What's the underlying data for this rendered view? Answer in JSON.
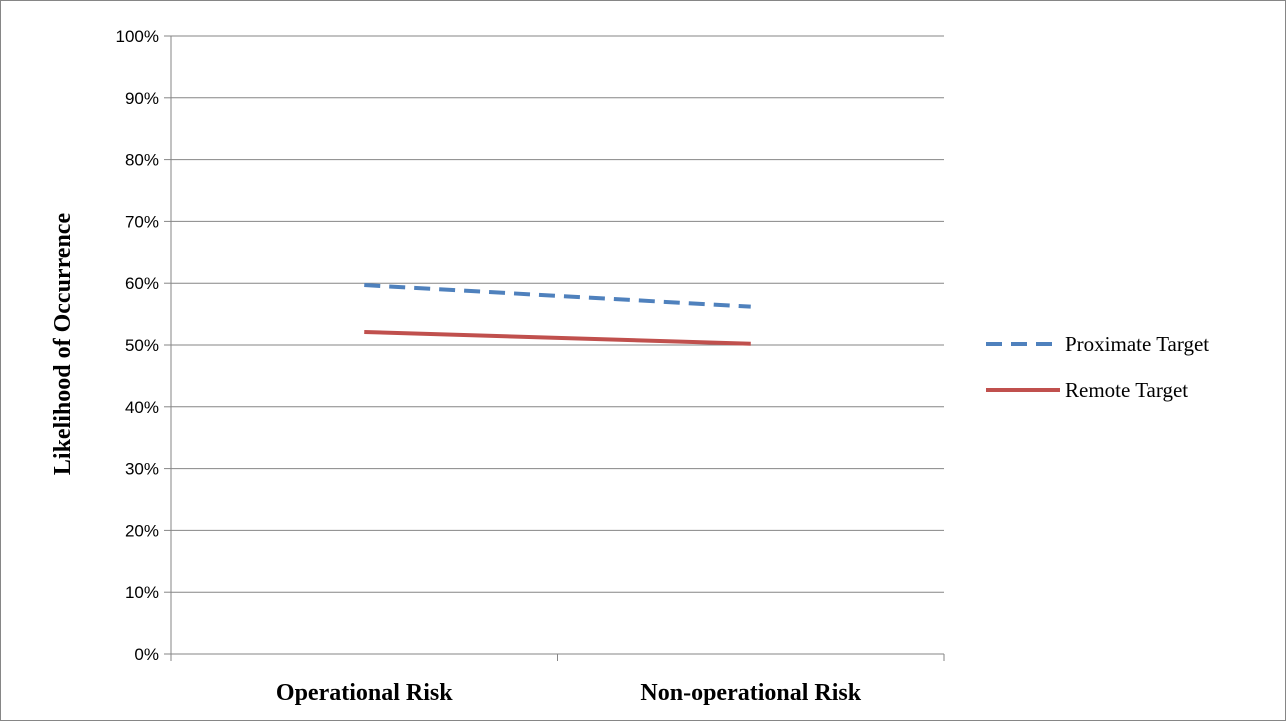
{
  "chart_data": {
    "type": "line",
    "categories": [
      "Operational Risk",
      "Non-operational Risk"
    ],
    "series": [
      {
        "name": "Proximate Target",
        "values": [
          0.597,
          0.562
        ],
        "color": "#4f81bd",
        "style": "dashed"
      },
      {
        "name": "Remote Target",
        "values": [
          0.521,
          0.502
        ],
        "color": "#c0504d",
        "style": "solid"
      }
    ],
    "title": "",
    "xlabel": "",
    "ylabel": "Likelihood of Occurrence",
    "ylim": [
      0,
      1
    ],
    "yticks": [
      "0%",
      "10%",
      "20%",
      "30%",
      "40%",
      "50%",
      "60%",
      "70%",
      "80%",
      "90%",
      "100%"
    ],
    "grid": true,
    "legend_position": "right",
    "gridline_color": "#868686"
  }
}
